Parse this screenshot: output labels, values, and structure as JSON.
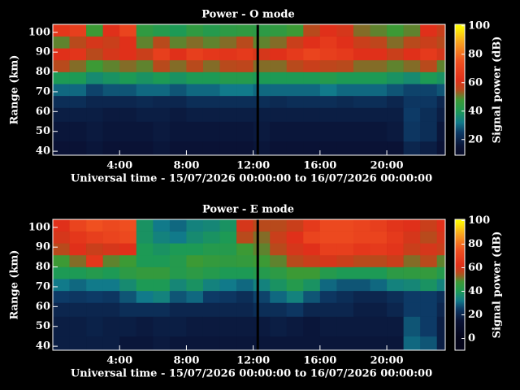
{
  "chart_data": [
    {
      "type": "heatmap",
      "title": "Power - O mode",
      "xlabel": "Universal time - 15/07/2026 00:00:00 to 16/07/2026 00:00:00",
      "ylabel": "Range (km)",
      "xlim": [
        0,
        23.5
      ],
      "ylim": [
        38,
        104
      ],
      "xticks": [
        {
          "value": 4,
          "label": "4:00"
        },
        {
          "value": 8,
          "label": "8:00"
        },
        {
          "value": 12,
          "label": "12:00"
        },
        {
          "value": 16,
          "label": "16:00"
        },
        {
          "value": 20,
          "label": "20:00"
        }
      ],
      "yticks": [
        40,
        50,
        60,
        70,
        80,
        90,
        100
      ],
      "x_edges": [
        0,
        1,
        2,
        3,
        4,
        5,
        6,
        7,
        8,
        9,
        10,
        11,
        12,
        13,
        14,
        15,
        16,
        17,
        18,
        19,
        20,
        21,
        22,
        23,
        23.5
      ],
      "y_edges": [
        38,
        45,
        55,
        62,
        68,
        74,
        80,
        86,
        92,
        98,
        104
      ],
      "values": [
        [
          15,
          15,
          16,
          15,
          15,
          15,
          16,
          15,
          15,
          15,
          15,
          15,
          16,
          15,
          15,
          15,
          15,
          15,
          15,
          15,
          15,
          20,
          18,
          15
        ],
        [
          16,
          16,
          17,
          16,
          16,
          16,
          17,
          16,
          16,
          16,
          16,
          16,
          17,
          16,
          16,
          16,
          16,
          16,
          16,
          16,
          17,
          24,
          22,
          16
        ],
        [
          18,
          18,
          18,
          17,
          17,
          18,
          18,
          17,
          18,
          18,
          18,
          18,
          18,
          18,
          18,
          18,
          18,
          18,
          18,
          18,
          18,
          25,
          22,
          18
        ],
        [
          22,
          22,
          20,
          20,
          20,
          21,
          20,
          20,
          22,
          22,
          22,
          22,
          22,
          21,
          22,
          22,
          22,
          21,
          22,
          22,
          20,
          24,
          24,
          20
        ],
        [
          30,
          30,
          26,
          28,
          28,
          30,
          30,
          28,
          30,
          30,
          32,
          32,
          30,
          30,
          30,
          30,
          32,
          30,
          30,
          30,
          28,
          26,
          26,
          28
        ],
        [
          40,
          40,
          36,
          38,
          40,
          38,
          40,
          38,
          40,
          40,
          42,
          42,
          40,
          40,
          40,
          40,
          42,
          40,
          40,
          40,
          38,
          36,
          40,
          38
        ],
        [
          55,
          52,
          48,
          50,
          52,
          50,
          55,
          52,
          55,
          52,
          55,
          56,
          52,
          52,
          55,
          58,
          56,
          55,
          52,
          52,
          50,
          52,
          55,
          50
        ],
        [
          62,
          64,
          55,
          60,
          62,
          58,
          68,
          62,
          68,
          65,
          64,
          66,
          60,
          62,
          66,
          70,
          68,
          66,
          62,
          62,
          58,
          62,
          66,
          60
        ],
        [
          50,
          55,
          60,
          58,
          62,
          50,
          55,
          50,
          52,
          50,
          52,
          55,
          50,
          52,
          58,
          62,
          66,
          62,
          58,
          56,
          52,
          55,
          58,
          55
        ],
        [
          65,
          68,
          48,
          62,
          70,
          45,
          42,
          40,
          45,
          42,
          44,
          45,
          44,
          45,
          48,
          55,
          62,
          60,
          52,
          50,
          48,
          50,
          62,
          58
        ]
      ],
      "colorbar": {
        "label": "Signal power (dB)",
        "lim": [
          9,
          101
        ],
        "ticks": [
          20,
          40,
          60,
          80,
          100
        ]
      },
      "colormap": [
        [
          0,
          "#05051a"
        ],
        [
          15,
          "#0a1235"
        ],
        [
          25,
          "#0d3a66"
        ],
        [
          32,
          "#117a8a"
        ],
        [
          40,
          "#1d9a55"
        ],
        [
          48,
          "#3c9a35"
        ],
        [
          55,
          "#b84a1c"
        ],
        [
          62,
          "#e0301a"
        ],
        [
          75,
          "#f05020"
        ],
        [
          88,
          "#f8a020"
        ],
        [
          100,
          "#ffff00"
        ]
      ]
    },
    {
      "type": "heatmap",
      "title": "Power - E mode",
      "xlabel": "Universal time - 15/07/2026 00:00:00 to 16/07/2026 00:00:00",
      "ylabel": "Range (km)",
      "xlim": [
        0,
        23.5
      ],
      "ylim": [
        38,
        104
      ],
      "xticks": [
        {
          "value": 4,
          "label": "4:00"
        },
        {
          "value": 8,
          "label": "8:00"
        },
        {
          "value": 12,
          "label": "12:00"
        },
        {
          "value": 16,
          "label": "16:00"
        },
        {
          "value": 20,
          "label": "20:00"
        }
      ],
      "yticks": [
        40,
        50,
        60,
        70,
        80,
        90,
        100
      ],
      "x_edges": [
        0,
        1,
        2,
        3,
        4,
        5,
        6,
        7,
        8,
        9,
        10,
        11,
        12,
        13,
        14,
        15,
        16,
        17,
        18,
        19,
        20,
        21,
        22,
        23,
        23.5
      ],
      "y_edges": [
        38,
        45,
        55,
        62,
        68,
        74,
        80,
        86,
        92,
        98,
        104
      ],
      "values": [
        [
          18,
          18,
          18,
          18,
          16,
          16,
          17,
          16,
          16,
          16,
          16,
          16,
          16,
          16,
          16,
          16,
          16,
          16,
          16,
          16,
          16,
          30,
          28,
          18
        ],
        [
          18,
          18,
          19,
          18,
          18,
          17,
          18,
          18,
          17,
          17,
          17,
          17,
          17,
          18,
          17,
          16,
          17,
          17,
          17,
          17,
          17,
          28,
          25,
          18
        ],
        [
          20,
          20,
          20,
          20,
          22,
          22,
          22,
          20,
          20,
          20,
          20,
          20,
          22,
          22,
          24,
          20,
          20,
          20,
          18,
          18,
          20,
          25,
          25,
          20
        ],
        [
          25,
          24,
          25,
          24,
          28,
          32,
          34,
          28,
          30,
          25,
          24,
          22,
          26,
          30,
          34,
          28,
          24,
          22,
          20,
          20,
          22,
          25,
          25,
          22
        ],
        [
          32,
          30,
          32,
          32,
          36,
          40,
          40,
          35,
          38,
          34,
          32,
          30,
          34,
          38,
          42,
          38,
          30,
          28,
          28,
          30,
          34,
          35,
          38,
          34
        ],
        [
          40,
          40,
          42,
          40,
          44,
          46,
          46,
          42,
          44,
          42,
          40,
          40,
          42,
          44,
          48,
          48,
          42,
          40,
          40,
          40,
          44,
          45,
          46,
          42
        ],
        [
          48,
          52,
          65,
          50,
          48,
          40,
          40,
          42,
          48,
          46,
          45,
          46,
          48,
          50,
          55,
          58,
          60,
          58,
          55,
          55,
          58,
          52,
          55,
          50
        ],
        [
          55,
          62,
          58,
          60,
          62,
          40,
          38,
          40,
          40,
          42,
          42,
          48,
          50,
          55,
          60,
          62,
          68,
          68,
          65,
          66,
          64,
          58,
          60,
          58
        ],
        [
          60,
          65,
          68,
          70,
          72,
          38,
          34,
          32,
          36,
          38,
          40,
          55,
          52,
          58,
          62,
          70,
          72,
          72,
          70,
          70,
          66,
          60,
          55,
          60
        ],
        [
          62,
          70,
          75,
          72,
          74,
          38,
          32,
          30,
          34,
          35,
          38,
          60,
          55,
          55,
          58,
          66,
          72,
          72,
          70,
          68,
          64,
          62,
          58,
          62
        ]
      ],
      "colorbar": {
        "label": "Signal power (dB)",
        "lim": [
          -10,
          101
        ],
        "ticks": [
          0,
          20,
          40,
          60,
          80,
          100
        ]
      },
      "colormap": [
        [
          0,
          "#05051a"
        ],
        [
          15,
          "#0a1235"
        ],
        [
          25,
          "#0d3a66"
        ],
        [
          32,
          "#117a8a"
        ],
        [
          40,
          "#1d9a55"
        ],
        [
          48,
          "#3c9a35"
        ],
        [
          55,
          "#b84a1c"
        ],
        [
          62,
          "#e0301a"
        ],
        [
          75,
          "#f05020"
        ],
        [
          88,
          "#f8a020"
        ],
        [
          100,
          "#ffff00"
        ]
      ]
    }
  ]
}
